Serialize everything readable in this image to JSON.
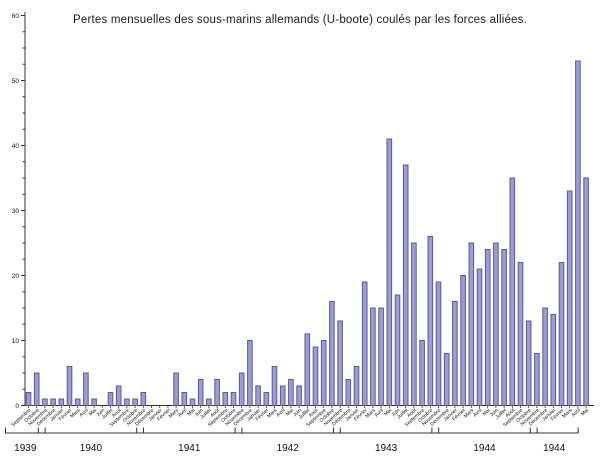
{
  "title": "Pertes mensuelles des sous-marins allemands (U-boote) coulés par les forces alliées.",
  "chart_data": {
    "type": "bar",
    "title": "Pertes mensuelles des sous-marins allemands (U-boote) coulés par les forces alliées.",
    "xlabel": "",
    "ylabel": "",
    "ylim": [
      0,
      60
    ],
    "y_major_ticks": [
      0,
      10,
      20,
      30,
      40,
      50,
      60
    ],
    "y_minor_step": 2.5,
    "grid": "off",
    "legend": "none",
    "bar_fill": "#9b9ade",
    "bar_stroke": "#5c5c86",
    "axis_color": "#333333",
    "text_color": "#111111",
    "groups": [
      {
        "label": "1939",
        "months": [
          "Septembre",
          "Octobre",
          "Novembre",
          "Décembre"
        ],
        "values": [
          2,
          5,
          1,
          1
        ]
      },
      {
        "label": "1940",
        "months": [
          "Janvier",
          "Février",
          "Mars",
          "Avril",
          "Mai",
          "Juin",
          "Juillet",
          "Août",
          "Septembre",
          "Octobre",
          "Novembre",
          "Décembre"
        ],
        "values": [
          1,
          6,
          1,
          5,
          1,
          0,
          2,
          3,
          1,
          1,
          2,
          0
        ]
      },
      {
        "label": "1941",
        "months": [
          "Janvier",
          "Février",
          "Mars",
          "Avril",
          "Mai",
          "Juin",
          "Juillet",
          "Août",
          "Septembre",
          "Octobre",
          "Novembre",
          "Décembre"
        ],
        "values": [
          0,
          0,
          5,
          2,
          1,
          4,
          1,
          4,
          2,
          2,
          5,
          10
        ]
      },
      {
        "label": "1942",
        "months": [
          "Janvier",
          "Février",
          "Mars",
          "Avril",
          "Mai",
          "Juin",
          "Juillet",
          "Août",
          "Septembre",
          "Octobre",
          "Novembre",
          "Décembre"
        ],
        "values": [
          3,
          2,
          6,
          3,
          4,
          3,
          11,
          9,
          10,
          16,
          13,
          4
        ]
      },
      {
        "label": "1943",
        "months": [
          "Janvier",
          "Février",
          "Mars",
          "Avril",
          "Mai",
          "Juin",
          "Juillet",
          "Août",
          "Septembre",
          "Octobre",
          "Novembre",
          "Décembre"
        ],
        "values": [
          6,
          19,
          15,
          15,
          41,
          17,
          37,
          25,
          10,
          26,
          19,
          8
        ]
      },
      {
        "label": "1944",
        "months": [
          "Janvier",
          "Février",
          "Mars",
          "Avril",
          "Mai",
          "Juin",
          "Juillet",
          "Août",
          "Septembre",
          "Octobre",
          "Novembre",
          "Décembre"
        ],
        "values": [
          16,
          20,
          25,
          21,
          24,
          25,
          24,
          35,
          22,
          13,
          8,
          15
        ]
      },
      {
        "label": "1944",
        "months": [
          "Janvier",
          "Février",
          "Mars",
          "Avril",
          "Mai"
        ],
        "values": [
          14,
          22,
          33,
          53,
          35
        ]
      }
    ]
  }
}
